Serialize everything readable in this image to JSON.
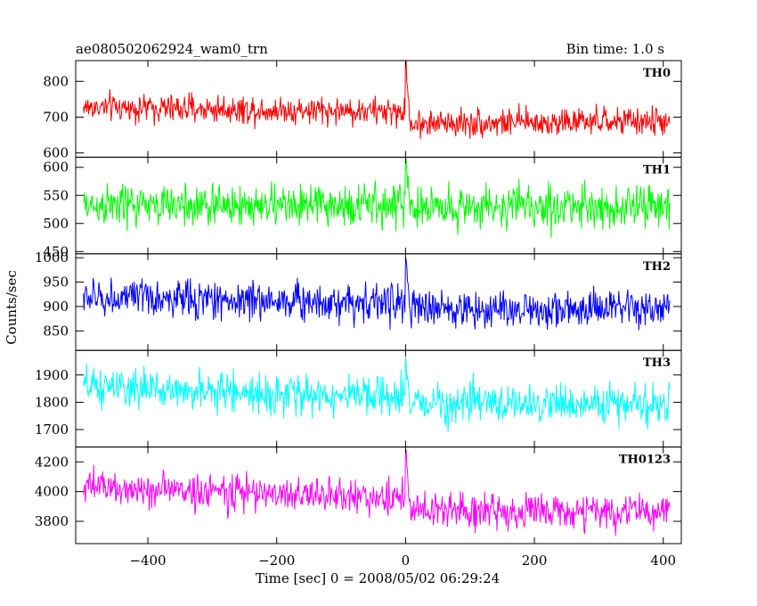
{
  "chart_data": {
    "type": "line",
    "title_left": "ae080502062924_wam0_trn",
    "title_right": "Bin time: 1.0 s",
    "xlabel": "Time [sec] 0 = 2008/05/02 06:29:24",
    "ylabel": "Counts/sec",
    "x": {
      "range": [
        -512,
        428
      ],
      "ticks": [
        -400,
        -200,
        0,
        200,
        400
      ],
      "bin_time_s": 1.0
    },
    "grid": false,
    "legend": "none",
    "panels": [
      {
        "name": "TH0",
        "color": "#ff0000",
        "ylim": [
          588,
          858
        ],
        "yticks": [
          600,
          700,
          800
        ],
        "profile": {
          "pre_mean": 728,
          "pre_mean_end": 715,
          "post_mean": 683,
          "post_mean_end": 688,
          "noise_sd": 28,
          "peak": 858
        }
      },
      {
        "name": "TH1",
        "color": "#00ff00",
        "ylim": [
          446,
          618
        ],
        "yticks": [
          450,
          500,
          550,
          600
        ],
        "profile": {
          "pre_mean": 532,
          "pre_mean_end": 532,
          "post_mean": 530,
          "post_mean_end": 530,
          "noise_sd": 27,
          "peak": 618
        }
      },
      {
        "name": "TH2",
        "color": "#0000ff",
        "ylim": [
          810,
          1008
        ],
        "yticks": [
          850,
          900,
          950,
          1000
        ],
        "profile": {
          "pre_mean": 918,
          "pre_mean_end": 908,
          "post_mean": 895,
          "post_mean_end": 893,
          "noise_sd": 28,
          "peak": 1000
        }
      },
      {
        "name": "TH3",
        "color": "#00ffff",
        "ylim": [
          1636,
          1990
        ],
        "yticks": [
          1700,
          1800,
          1900
        ],
        "profile": {
          "pre_mean": 1855,
          "pre_mean_end": 1815,
          "post_mean": 1798,
          "post_mean_end": 1790,
          "noise_sd": 50,
          "peak": 1940
        }
      },
      {
        "name": "TH0123",
        "color": "#ff00ff",
        "ylim": [
          3650,
          4300
        ],
        "yticks": [
          3800,
          4000,
          4200
        ],
        "profile": {
          "pre_mean": 4030,
          "pre_mean_end": 3955,
          "post_mean": 3875,
          "post_mean_end": 3860,
          "noise_sd": 85,
          "peak": 4290
        }
      }
    ]
  }
}
